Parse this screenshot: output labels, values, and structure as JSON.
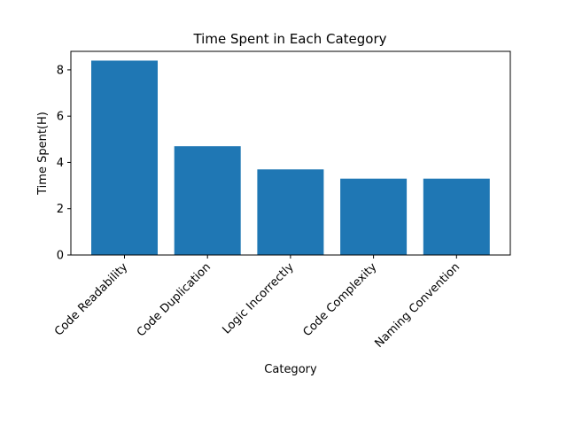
{
  "chart_data": {
    "type": "bar",
    "title": "Time Spent in Each Category",
    "xlabel": "Category",
    "ylabel": "Time Spent(H)",
    "categories": [
      "Code Readability",
      "Code Duplication",
      "Logic Incorrectly",
      "Code Complexity",
      "Naming Convention"
    ],
    "values": [
      8.4,
      4.7,
      3.7,
      3.3,
      3.3
    ],
    "ylim": [
      0,
      8.8
    ],
    "yticks": [
      0,
      2,
      4,
      6,
      8
    ],
    "grid": false,
    "bar_color": "#1f77b4"
  }
}
